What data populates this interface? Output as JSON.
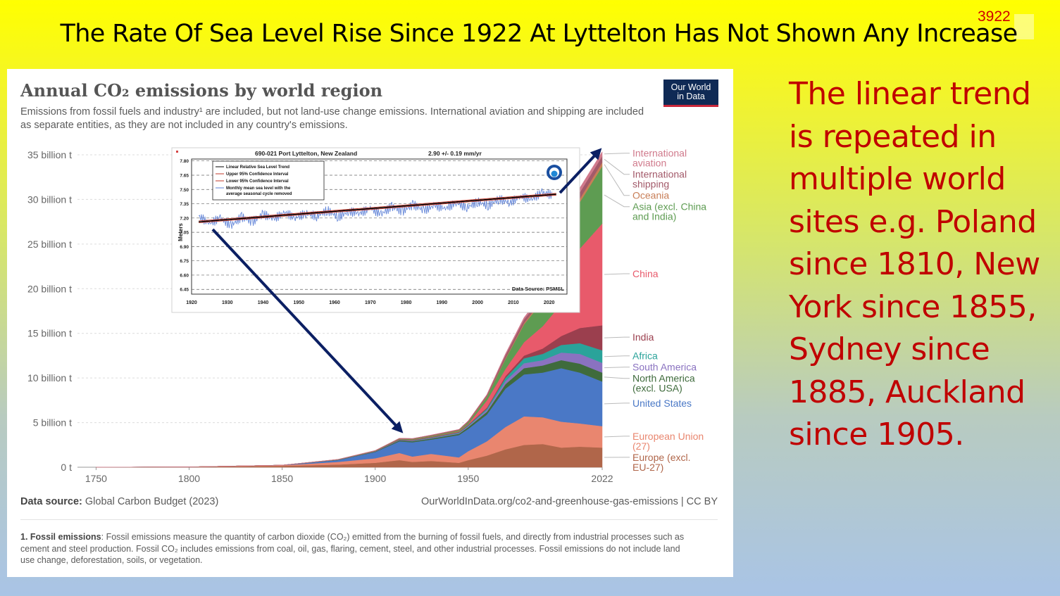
{
  "slide": {
    "title": "The Rate Of Sea Level Rise Since 1922 At Lyttelton Has Not Shown Any Increase",
    "slide_number": "3922",
    "side_text": "The linear trend is repeated in multiple world sites e.g. Poland since 1810, New York since 1855, Sydney since 1885, Auckland since 1905."
  },
  "owid": {
    "title": "Annual CO₂ emissions by world region",
    "subtitle": "Emissions from fossil fuels and industry¹ are included, but not land-use change emissions. International aviation and shipping are included as separate entities, as they are not included in any country's emissions.",
    "logo_line1": "Our World",
    "logo_line2": "in Data",
    "source_label": "Data source:",
    "source_value": "Global Carbon Budget (2023)",
    "url": "OurWorldInData.org/co2-and-greenhouse-gas-emissions | CC BY",
    "footnote_label": "1. Fossil emissions",
    "footnote_text": ": Fossil emissions measure the quantity of carbon dioxide (CO₂) emitted from the burning of fossil fuels, and directly from industrial processes such as cement and steel production. Fossil CO₂ includes emissions from coal, oil, gas, flaring, cement, steel, and other industrial processes. Fossil emissions do not include land use change, deforestation, soils, or vegetation."
  },
  "chart_data": [
    {
      "type": "area",
      "stacked": true,
      "title": "Annual CO₂ emissions by world region",
      "x": [
        1750,
        1800,
        1850,
        1880,
        1900,
        1913,
        1920,
        1930,
        1945,
        1950,
        1960,
        1970,
        1980,
        1990,
        2000,
        2010,
        2022
      ],
      "xticks": [
        1750,
        1800,
        1850,
        1900,
        1950,
        2022
      ],
      "yticks": [
        0,
        5,
        10,
        15,
        20,
        25,
        30,
        35
      ],
      "ytick_labels": [
        "0 t",
        "5 billion t",
        "10 billion t",
        "15 billion t",
        "20 billion t",
        "25 billion t",
        "30 billion t",
        "35 billion t"
      ],
      "ylim": [
        0,
        37
      ],
      "series": [
        {
          "name": "Europe (excl. EU-27)",
          "color": "#b0664a",
          "values": [
            0.01,
            0.03,
            0.15,
            0.3,
            0.5,
            0.8,
            0.6,
            0.7,
            0.5,
            0.8,
            1.3,
            2.0,
            2.5,
            2.6,
            2.2,
            2.3,
            2.2
          ]
        },
        {
          "name": "European Union (27)",
          "color": "#e9866f",
          "values": [
            0.0,
            0.01,
            0.07,
            0.3,
            0.5,
            0.8,
            0.6,
            0.8,
            0.6,
            1.0,
            1.6,
            2.5,
            3.2,
            3.0,
            2.9,
            2.6,
            2.4
          ]
        },
        {
          "name": "United States",
          "color": "#4a78c6",
          "values": [
            0.0,
            0.0,
            0.02,
            0.2,
            0.7,
            1.3,
            1.6,
            1.6,
            2.5,
            2.5,
            3.0,
            4.3,
            4.7,
            5.0,
            6.0,
            5.7,
            5.0
          ]
        },
        {
          "name": "North America (excl. USA)",
          "color": "#3f6b3c",
          "values": [
            0,
            0,
            0,
            0.02,
            0.05,
            0.1,
            0.12,
            0.12,
            0.15,
            0.2,
            0.3,
            0.5,
            0.7,
            0.8,
            0.9,
            1.0,
            1.0
          ]
        },
        {
          "name": "South America",
          "color": "#8a72c0",
          "values": [
            0,
            0,
            0,
            0.01,
            0.02,
            0.04,
            0.05,
            0.06,
            0.08,
            0.1,
            0.2,
            0.35,
            0.55,
            0.6,
            0.85,
            1.1,
            1.1
          ]
        },
        {
          "name": "Africa",
          "color": "#2aa39a",
          "values": [
            0,
            0,
            0,
            0.01,
            0.02,
            0.03,
            0.04,
            0.05,
            0.07,
            0.1,
            0.15,
            0.35,
            0.55,
            0.7,
            0.85,
            1.2,
            1.4
          ]
        },
        {
          "name": "India",
          "color": "#9b3f4e",
          "values": [
            0,
            0,
            0,
            0.01,
            0.02,
            0.04,
            0.05,
            0.05,
            0.06,
            0.07,
            0.12,
            0.2,
            0.3,
            0.6,
            1.0,
            1.7,
            2.8
          ]
        },
        {
          "name": "China",
          "color": "#e85a6b",
          "values": [
            0,
            0,
            0,
            0.0,
            0.01,
            0.02,
            0.02,
            0.03,
            0.05,
            0.08,
            0.8,
            0.8,
            1.5,
            2.5,
            3.6,
            8.9,
            11.4
          ]
        },
        {
          "name": "Asia (excl. China and India)",
          "color": "#5e9c52",
          "values": [
            0,
            0,
            0,
            0.01,
            0.02,
            0.05,
            0.07,
            0.1,
            0.12,
            0.2,
            0.4,
            1.1,
            2.0,
            2.8,
            3.8,
            5.2,
            6.4
          ]
        },
        {
          "name": "Oceania",
          "color": "#c87e57",
          "values": [
            0,
            0,
            0,
            0.01,
            0.01,
            0.02,
            0.02,
            0.03,
            0.03,
            0.04,
            0.06,
            0.1,
            0.15,
            0.2,
            0.3,
            0.4,
            0.45
          ]
        },
        {
          "name": "International shipping",
          "color": "#a35a6a",
          "values": [
            0,
            0,
            0,
            0.01,
            0.03,
            0.05,
            0.05,
            0.06,
            0.07,
            0.1,
            0.15,
            0.35,
            0.4,
            0.4,
            0.5,
            0.7,
            0.7
          ]
        },
        {
          "name": "International aviation",
          "color": "#d07a8c",
          "values": [
            0,
            0,
            0,
            0,
            0,
            0,
            0,
            0,
            0.01,
            0.02,
            0.06,
            0.15,
            0.22,
            0.3,
            0.4,
            0.5,
            0.5
          ]
        }
      ],
      "legend": "right"
    },
    {
      "type": "line",
      "title": "690-021 Port Lyttelton, New Zealand",
      "subtitle": "2.90 +/-  0.19 mm/yr",
      "ylabel": "Meters",
      "note": "Data Source: PSMSL",
      "xticks": [
        1920,
        1930,
        1940,
        1950,
        1960,
        1970,
        1980,
        1990,
        2000,
        2010,
        2020
      ],
      "yticks": [
        6.45,
        6.6,
        6.75,
        6.9,
        7.05,
        7.2,
        7.35,
        7.5,
        7.65,
        7.8
      ],
      "ytick_labels": [
        "6.45",
        "6.60",
        "6.75",
        "6.90",
        "7.05",
        "7.20",
        "7.35",
        "7.50",
        "7.65",
        "7.80"
      ],
      "xlim": [
        1920,
        2025
      ],
      "ylim": [
        6.4,
        7.82
      ],
      "legend_entries": [
        "Linear Relative Sea Level Trend",
        "Upper 95% Confidence Interval",
        "Lower 95% Confidence Interval",
        "Monthly mean sea level with the average seasonal cycle removed"
      ],
      "series": [
        {
          "name": "Linear Relative Sea Level Trend",
          "color": "#000000",
          "x": [
            1922,
            2022
          ],
          "values": [
            7.16,
            7.45
          ]
        },
        {
          "name": "Upper 95% Confidence Interval",
          "color": "#c0392b",
          "x": [
            1922,
            2022
          ],
          "values": [
            7.17,
            7.46
          ]
        },
        {
          "name": "Lower 95% Confidence Interval",
          "color": "#c0392b",
          "x": [
            1922,
            2022
          ],
          "values": [
            7.15,
            7.44
          ]
        },
        {
          "name": "Monthly mean sea level with the average seasonal cycle removed",
          "color": "#5b7fd6",
          "x": [
            1922,
            1925,
            1928,
            1931,
            1934,
            1937,
            1940,
            1943,
            1946,
            1949,
            1952,
            1955,
            1958,
            1961,
            1964,
            1967,
            1970,
            1973,
            1976,
            1979,
            1982,
            1985,
            1988,
            1991,
            1994,
            1997,
            2000,
            2003,
            2006,
            2009,
            2012,
            2015,
            2018,
            2021
          ],
          "values": [
            7.22,
            7.14,
            7.2,
            7.12,
            7.21,
            7.16,
            7.24,
            7.19,
            7.26,
            7.2,
            7.25,
            7.22,
            7.28,
            7.21,
            7.27,
            7.25,
            7.3,
            7.24,
            7.32,
            7.27,
            7.34,
            7.28,
            7.33,
            7.3,
            7.36,
            7.31,
            7.37,
            7.33,
            7.4,
            7.36,
            7.43,
            7.39,
            7.47,
            7.44
          ]
        }
      ]
    }
  ]
}
